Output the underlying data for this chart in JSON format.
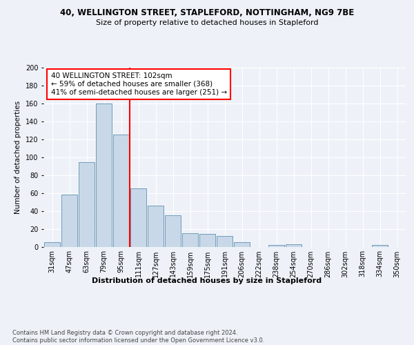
{
  "title1": "40, WELLINGTON STREET, STAPLEFORD, NOTTINGHAM, NG9 7BE",
  "title2": "Size of property relative to detached houses in Stapleford",
  "xlabel": "Distribution of detached houses by size in Stapleford",
  "ylabel": "Number of detached properties",
  "footnote": "Contains HM Land Registry data © Crown copyright and database right 2024.\nContains public sector information licensed under the Open Government Licence v3.0.",
  "bar_labels": [
    "31sqm",
    "47sqm",
    "63sqm",
    "79sqm",
    "95sqm",
    "111sqm",
    "127sqm",
    "143sqm",
    "159sqm",
    "175sqm",
    "191sqm",
    "206sqm",
    "222sqm",
    "238sqm",
    "254sqm",
    "270sqm",
    "286sqm",
    "302sqm",
    "318sqm",
    "334sqm",
    "350sqm"
  ],
  "bar_values": [
    5,
    58,
    94,
    160,
    125,
    65,
    46,
    35,
    15,
    14,
    12,
    5,
    0,
    2,
    3,
    0,
    0,
    0,
    0,
    2,
    0
  ],
  "bar_color": "#c8d8e8",
  "bar_edgecolor": "#6090b0",
  "vline_x": 4.5,
  "vline_color": "red",
  "annotation_text": "40 WELLINGTON STREET: 102sqm\n← 59% of detached houses are smaller (368)\n41% of semi-detached houses are larger (251) →",
  "annotation_box_color": "white",
  "annotation_box_edgecolor": "red",
  "ylim": [
    0,
    200
  ],
  "yticks": [
    0,
    20,
    40,
    60,
    80,
    100,
    120,
    140,
    160,
    180,
    200
  ],
  "bg_color": "#eef2f8",
  "grid_color": "white",
  "title1_fontsize": 8.5,
  "title2_fontsize": 8.0,
  "ylabel_fontsize": 7.5,
  "xlabel_fontsize": 8.0,
  "tick_fontsize": 7.0,
  "annot_fontsize": 7.5,
  "footnote_fontsize": 6.0
}
